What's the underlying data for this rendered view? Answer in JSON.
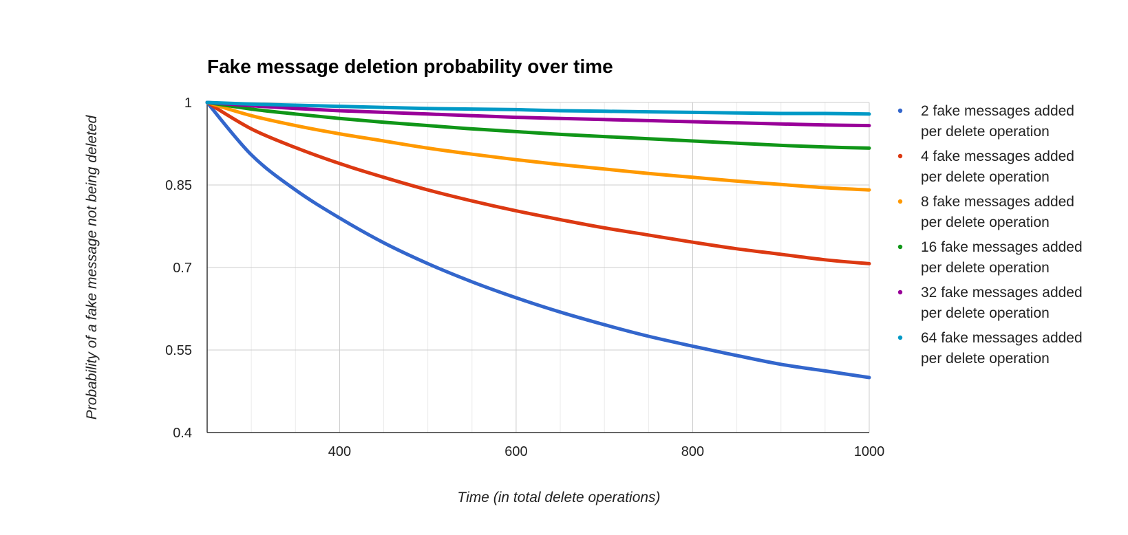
{
  "chart_data": {
    "type": "line",
    "title": "Fake message deletion probability over time",
    "xlabel": "Time (in total delete operations)",
    "ylabel": "Probability of a fake message not being deleted",
    "xlim": [
      250,
      1000
    ],
    "ylim": [
      0.4,
      1
    ],
    "x_ticks": [
      400,
      600,
      800,
      1000
    ],
    "x_tick_labels": [
      "400",
      "600",
      "800",
      "1000"
    ],
    "y_ticks": [
      0.4,
      0.55,
      0.7,
      0.85,
      1
    ],
    "y_tick_labels": [
      "0.4",
      "0.55",
      "0.7",
      "0.85",
      "1"
    ],
    "grid": true,
    "legend_position": "right",
    "x": [
      250,
      300,
      350,
      400,
      450,
      500,
      550,
      600,
      650,
      700,
      750,
      800,
      850,
      900,
      950,
      1000
    ],
    "series": [
      {
        "name": "2 fake messages added per delete operation",
        "legend_lines": [
          "2 fake messages added",
          "per delete operation"
        ],
        "color": "#3366cc",
        "values": [
          1.0,
          0.905,
          0.841,
          0.79,
          0.745,
          0.707,
          0.674,
          0.645,
          0.619,
          0.596,
          0.575,
          0.557,
          0.54,
          0.524,
          0.512,
          0.5
        ]
      },
      {
        "name": "4 fake messages added per delete operation",
        "legend_lines": [
          "4 fake messages added",
          "per delete operation"
        ],
        "color": "#dc3912",
        "values": [
          1.0,
          0.952,
          0.918,
          0.889,
          0.864,
          0.841,
          0.821,
          0.803,
          0.787,
          0.772,
          0.759,
          0.746,
          0.734,
          0.724,
          0.714,
          0.707
        ]
      },
      {
        "name": "8 fake messages added per delete operation",
        "legend_lines": [
          "8 fake messages added",
          "per delete operation"
        ],
        "color": "#ff9900",
        "values": [
          1.0,
          0.976,
          0.958,
          0.943,
          0.93,
          0.917,
          0.906,
          0.896,
          0.887,
          0.879,
          0.871,
          0.864,
          0.857,
          0.851,
          0.845,
          0.841
        ]
      },
      {
        "name": "16 fake messages added per delete operation",
        "legend_lines": [
          "16 fake messages added",
          "per delete operation"
        ],
        "color": "#109618",
        "values": [
          1.0,
          0.988,
          0.979,
          0.971,
          0.964,
          0.958,
          0.952,
          0.947,
          0.942,
          0.938,
          0.934,
          0.93,
          0.926,
          0.922,
          0.919,
          0.917
        ]
      },
      {
        "name": "32 fake messages added per delete operation",
        "legend_lines": [
          "32 fake messages added",
          "per delete operation"
        ],
        "color": "#990099",
        "values": [
          1.0,
          0.994,
          0.989,
          0.985,
          0.982,
          0.979,
          0.976,
          0.973,
          0.971,
          0.969,
          0.967,
          0.965,
          0.963,
          0.961,
          0.959,
          0.958
        ]
      },
      {
        "name": "64 fake messages added per delete operation",
        "legend_lines": [
          "64 fake messages added",
          "per delete operation"
        ],
        "color": "#0099c6",
        "values": [
          1.0,
          0.997,
          0.995,
          0.993,
          0.991,
          0.989,
          0.988,
          0.987,
          0.985,
          0.984,
          0.983,
          0.982,
          0.981,
          0.98,
          0.98,
          0.979
        ]
      }
    ]
  }
}
